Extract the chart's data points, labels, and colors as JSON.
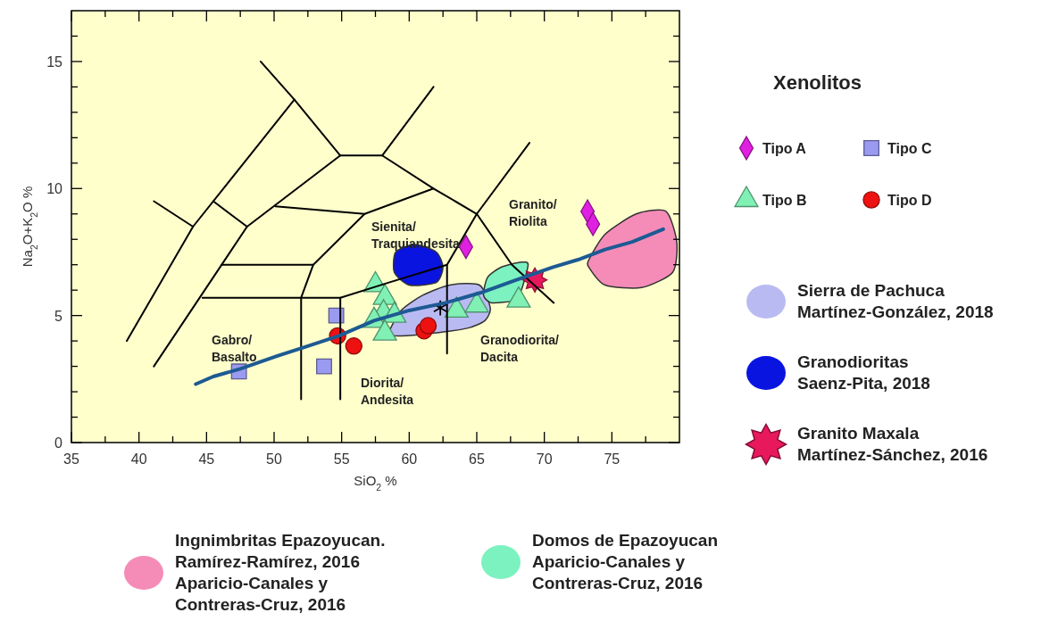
{
  "chart_data": {
    "type": "scatter",
    "xlabel": "SiO$_{2}$ %",
    "ylabel": "Na$_{2}$O+K$_{2}$O %",
    "legend_title": "Xenolitos",
    "legend": "right",
    "grid": false,
    "xlim": [
      35,
      80
    ],
    "ylim": [
      0,
      17
    ],
    "xticks": [
      35,
      {
        "value": 37.5,
        "label": null
      },
      40,
      {
        "value": 42.5,
        "label": null
      },
      45,
      {
        "value": 47.5,
        "label": null
      },
      50,
      {
        "value": 52.5,
        "label": null
      },
      55,
      {
        "value": 57.5,
        "label": null
      },
      60,
      {
        "value": 62.5,
        "label": null
      },
      65,
      {
        "value": 67.5,
        "label": null
      },
      70,
      {
        "value": 72.5,
        "label": null
      },
      75,
      {
        "value": 77.5,
        "label": null
      }
    ],
    "yticks": [
      0,
      {
        "value": 1,
        "label": null
      },
      {
        "value": 2,
        "label": null
      },
      {
        "value": 3,
        "label": null
      },
      {
        "value": 4,
        "label": null
      },
      5,
      {
        "value": 6,
        "label": null
      },
      {
        "value": 7,
        "label": null
      },
      {
        "value": 8,
        "label": null
      },
      {
        "value": 9,
        "label": null
      },
      10,
      {
        "value": 11,
        "label": null
      },
      {
        "value": 12,
        "label": null
      },
      {
        "value": 13,
        "label": null
      },
      {
        "value": 14,
        "label": null
      },
      15,
      {
        "value": 16,
        "label": null
      }
    ],
    "annotations": [
      "Gabro/\nBasalto",
      "Diorita/\nAndesita",
      "Sienita/\nTraquiandesita",
      "Granito/\nRiolita",
      "Granodiorita/\nDacita"
    ],
    "series": [
      {
        "type": "line",
        "color": "#000000",
        "x": [
          39.1,
          44.0,
          51.5
        ],
        "values": [
          4.0,
          8.5,
          13.5
        ]
      },
      {
        "type": "line",
        "color": "#000000",
        "x": [
          41.1,
          44.0
        ],
        "values": [
          9.5,
          8.5
        ]
      },
      {
        "type": "line",
        "color": "#000000",
        "x": [
          41.1,
          48.0,
          54.9
        ],
        "values": [
          3.0,
          8.5,
          11.3
        ]
      },
      {
        "type": "line",
        "color": "#000000",
        "x": [
          45.5,
          48.0
        ],
        "values": [
          9.5,
          8.5
        ]
      },
      {
        "type": "line",
        "color": "#000000",
        "x": [
          49.0,
          51.5,
          54.9
        ],
        "values": [
          15.0,
          13.5,
          11.3
        ]
      },
      {
        "type": "line",
        "color": "#000000",
        "x": [
          54.9,
          58.0,
          61.8
        ],
        "values": [
          11.3,
          11.3,
          14.0
        ]
      },
      {
        "type": "line",
        "color": "#000000",
        "x": [
          58.0,
          61.8,
          65.0,
          68.9
        ],
        "values": [
          11.3,
          10.0,
          9.0,
          11.8
        ]
      },
      {
        "type": "line",
        "color": "#000000",
        "x": [
          65.0,
          67.6,
          70.7
        ],
        "values": [
          9.0,
          7.0,
          5.5
        ]
      },
      {
        "type": "line",
        "color": "#000000",
        "x": [
          50.1,
          56.7,
          61.8
        ],
        "values": [
          9.3,
          9.0,
          10.0
        ]
      },
      {
        "type": "line",
        "color": "#000000",
        "x": [
          46.1,
          52.9,
          56.7
        ],
        "values": [
          7.0,
          7.0,
          9.0
        ]
      },
      {
        "type": "line",
        "color": "#000000",
        "x": [
          52.9,
          52.0,
          52.0
        ],
        "values": [
          7.0,
          5.7,
          1.7
        ]
      },
      {
        "type": "line",
        "color": "#000000",
        "x": [
          44.7,
          54.9,
          58.5,
          62.8
        ],
        "values": [
          5.7,
          5.7,
          6.3,
          7.0
        ]
      },
      {
        "type": "line",
        "color": "#000000",
        "x": [
          54.9,
          54.9
        ],
        "values": [
          5.7,
          1.7
        ]
      },
      {
        "type": "line",
        "color": "#000000",
        "x": [
          65.0,
          62.8,
          62.8
        ],
        "values": [
          9.0,
          7.0,
          3.5
        ]
      },
      {
        "name": "Tipo A",
        "color": "#e020e0",
        "marker": "diamond",
        "x": [
          64.2,
          73.2,
          73.6
        ],
        "values": [
          7.7,
          9.1,
          8.6
        ]
      },
      {
        "name": "Tipo C",
        "color": "#9a9af0",
        "marker": "square",
        "x": [
          47.4,
          54.6,
          53.7
        ],
        "values": [
          2.8,
          5.0,
          3.0
        ]
      },
      {
        "name": "Tipo B",
        "color": "#80f0b4",
        "marker": "triangle",
        "x": [
          57.5,
          58.2,
          58.1,
          58.9,
          57.4,
          58.2,
          63.5,
          65.0,
          68.1
        ],
        "values": [
          6.2,
          5.7,
          5.1,
          5.0,
          4.8,
          4.3,
          5.2,
          5.4,
          5.6
        ]
      },
      {
        "name": "Tipo D",
        "color": "#ee1111",
        "marker": "circle",
        "x": [
          54.7,
          55.9,
          61.1,
          61.4
        ],
        "values": [
          4.2,
          3.8,
          4.4,
          4.6
        ]
      },
      {
        "type": "area",
        "name": "Sierra de Pachuca\nMartínez-González, 2018",
        "color": "#babaf2",
        "x": [
          58.5,
          59.4,
          61.0,
          63.0,
          65.2,
          66.0,
          65.6,
          64.3,
          61.7,
          59.4
        ],
        "values": [
          4.3,
          5.2,
          5.8,
          6.2,
          6.2,
          5.3,
          4.8,
          4.5,
          4.3,
          4.2
        ]
      },
      {
        "type": "area",
        "name": "Granodioritas\nSaenz-Pita, 2018",
        "color": "#0a14e0",
        "x": [
          59.0,
          60.4,
          62.0,
          62.5,
          62.0,
          60.0,
          58.9
        ],
        "values": [
          7.5,
          7.8,
          7.5,
          6.9,
          6.3,
          6.2,
          6.7
        ]
      },
      {
        "name": "Granito Maxala\nMartínez-Sánchez, 2016",
        "color": "#e8185c",
        "marker": "star",
        "x": [
          69.3
        ],
        "values": [
          6.4
        ]
      },
      {
        "type": "area",
        "name": "Ingnimbritas Epazoyucan.\nRamírez-Ramírez, 2016\nAparicio-Canales y\nContreras-Cruz, 2016",
        "color": "#f58cb8",
        "x": [
          73.3,
          74.5,
          76.8,
          79.0,
          79.8,
          79.5,
          77.2,
          74.5,
          73.3
        ],
        "values": [
          7.2,
          8.2,
          9.0,
          9.1,
          7.9,
          6.7,
          6.1,
          6.2,
          6.9
        ]
      },
      {
        "type": "area",
        "name": "Domos de Epazoyucan\nAparicio-Canales y\nContreras-Cruz, 2016",
        "color": "#7cf2c0",
        "x": [
          65.8,
          66.8,
          68.3,
          68.8,
          68.3,
          67.8,
          66.1,
          65.5
        ],
        "values": [
          6.5,
          6.9,
          7.1,
          7.0,
          6.0,
          5.6,
          5.5,
          5.8
        ]
      },
      {
        "color": "#000000",
        "marker": "cross",
        "x": [
          62.3
        ],
        "values": [
          5.3
        ]
      },
      {
        "type": "line",
        "color": "#1d5a93",
        "x": [
          44.2,
          45.5,
          47.5,
          50.2,
          52.5,
          54.8,
          57.4,
          60.0,
          62.7,
          65.3,
          67.9,
          70.6,
          72.5,
          74.5,
          76.5,
          78.8
        ],
        "values": [
          2.3,
          2.6,
          2.9,
          3.4,
          3.8,
          4.2,
          4.8,
          5.2,
          5.5,
          5.9,
          6.4,
          6.9,
          7.2,
          7.6,
          7.9,
          8.4
        ]
      }
    ]
  }
}
